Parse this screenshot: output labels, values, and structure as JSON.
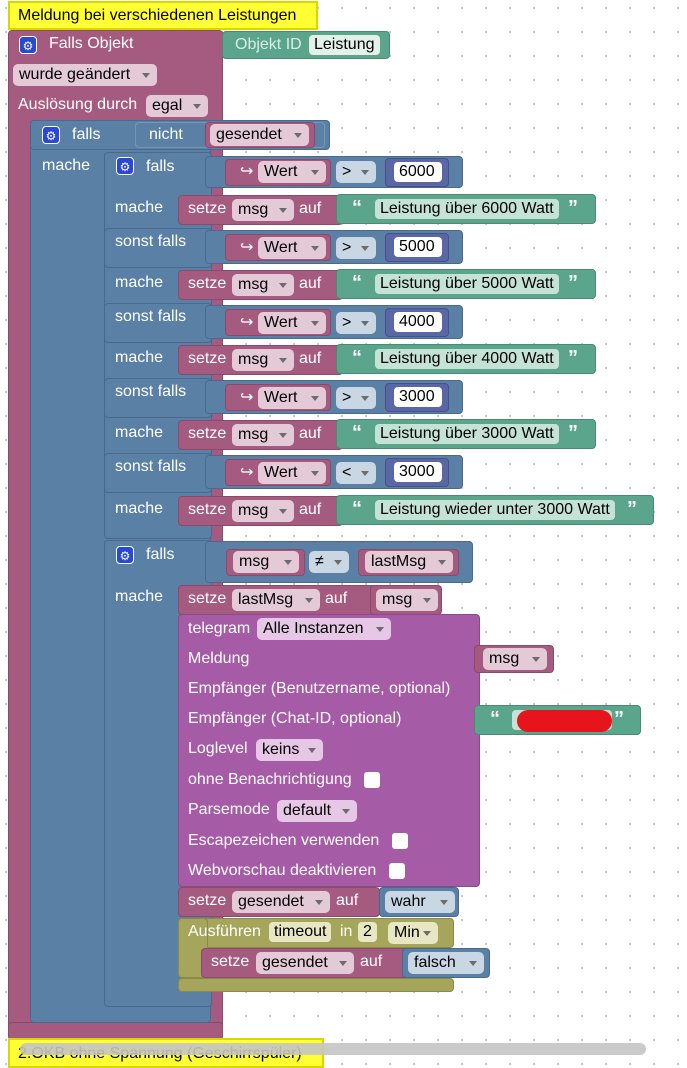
{
  "comments": {
    "top": "Meldung bei verschiedenen Leistungen",
    "bottom": "2.OKB ohne Spannung (Geschirrspüler)"
  },
  "trigger": {
    "title": "Falls Objekt",
    "object_id_label": "Objekt ID",
    "object_id_value": "Leistung",
    "change_mode": "wurde geändert",
    "trigger_by_label": "Auslösung durch",
    "trigger_by_value": "egal"
  },
  "outer_if": {
    "if_label": "falls",
    "not_label": "nicht",
    "var": "gesendet",
    "do_label": "mache"
  },
  "chain": {
    "if_label": "falls",
    "do_label": "mache",
    "elseif_label": "sonst falls",
    "set_label": "setze",
    "to_label": "auf",
    "var_label": "Wert",
    "msg_var": "msg",
    "branches": [
      {
        "op": ">",
        "num": "6000",
        "text": "Leistung über 6000 Watt"
      },
      {
        "op": ">",
        "num": "5000",
        "text": "Leistung über 5000 Watt"
      },
      {
        "op": ">",
        "num": "4000",
        "text": "Leistung über 4000 Watt"
      },
      {
        "op": ">",
        "num": "3000",
        "text": "Leistung über 3000 Watt"
      },
      {
        "op": "<",
        "num": "3000",
        "text": "Leistung wieder unter 3000 Watt"
      }
    ]
  },
  "second_if": {
    "if_label": "falls",
    "left": "msg",
    "op": "≠",
    "right": "lastMsg",
    "do_label": "mache",
    "set_label": "setze",
    "set_var": "lastMsg",
    "to_label": "auf",
    "set_value": "msg"
  },
  "telegram": {
    "title": "telegram",
    "instance": "Alle Instanzen",
    "message_label": "Meldung",
    "message_value": "msg",
    "recipient_user_label": "Empfänger (Benutzername, optional)",
    "recipient_chat_label": "Empfänger (Chat-ID, optional)",
    "loglevel_label": "Loglevel",
    "loglevel_value": "keins",
    "silent_label": "ohne Benachrichtigung",
    "parsemode_label": "Parsemode",
    "parsemode_value": "default",
    "escape_label": "Escapezeichen verwenden",
    "preview_label": "Webvorschau deaktivieren"
  },
  "after_telegram": {
    "set_label": "setze",
    "var": "gesendet",
    "to_label": "auf",
    "value": "wahr"
  },
  "timeout": {
    "exec_label": "Ausführen",
    "timeout_name": "timeout",
    "in_label": "in",
    "amount": "2",
    "unit": "Min",
    "set_label": "setze",
    "var": "gesendet",
    "to_label": "auf",
    "value": "falsch"
  },
  "colors": {
    "event_block": "#a55b80",
    "logic_block": "#5b80a5",
    "text_block": "#5ba58c",
    "telegram_block": "#a55ba5",
    "timeout_block": "#a5a55b",
    "comment": "#ffff33",
    "redaction": "#e8141b"
  }
}
